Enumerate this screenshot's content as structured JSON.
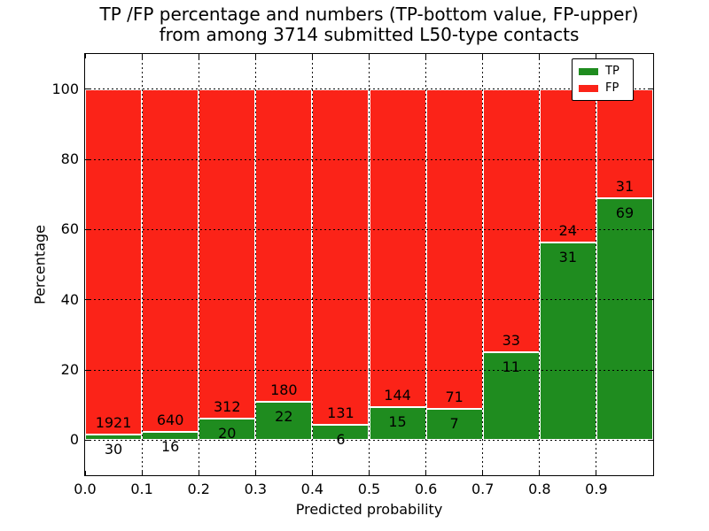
{
  "title": {
    "line1": "TP /FP percentage and numbers (TP-bottom value, FP-upper)",
    "line2": "from among 3714 submitted L50-type contacts"
  },
  "axes": {
    "xlabel": "Predicted probability",
    "ylabel": "Percentage",
    "x_tick_labels": [
      "0.0",
      "0.1",
      "0.2",
      "0.3",
      "0.4",
      "0.5",
      "0.6",
      "0.7",
      "0.8",
      "0.9"
    ],
    "y_tick_labels": [
      "0",
      "20",
      "40",
      "60",
      "80",
      "100"
    ],
    "y_tick_values": [
      0,
      20,
      40,
      60,
      80,
      100
    ]
  },
  "legend": {
    "items": [
      {
        "label": "TP",
        "color": "#1f8c1f"
      },
      {
        "label": "FP",
        "color": "#fb2318"
      }
    ]
  },
  "colors": {
    "tp_green": "#1f8c1f",
    "fp_red": "#fb2318",
    "bar_edge": "#ffffff",
    "grid": "#000000",
    "background": "#ffffff"
  },
  "chart_data": {
    "type": "bar",
    "subtype": "stacked-percentage",
    "title": "TP /FP percentage and numbers (TP-bottom value, FP-upper) from among 3714 submitted L50-type contacts",
    "xlabel": "Predicted probability",
    "ylabel": "Percentage",
    "xlim": [
      0.0,
      1.0
    ],
    "ylim": [
      -10,
      110
    ],
    "grid": "dotted black, drawn above bars",
    "legend_position": "upper right",
    "bin_width": 0.1,
    "categories": [
      "0.0",
      "0.1",
      "0.2",
      "0.3",
      "0.4",
      "0.5",
      "0.6",
      "0.7",
      "0.8",
      "0.9"
    ],
    "series": [
      {
        "name": "TP",
        "counts": [
          30,
          16,
          20,
          22,
          6,
          15,
          7,
          11,
          31,
          69
        ]
      },
      {
        "name": "FP",
        "counts": [
          1921,
          640,
          312,
          180,
          131,
          144,
          71,
          33,
          24,
          31
        ]
      }
    ],
    "total_contacts": 3714
  }
}
